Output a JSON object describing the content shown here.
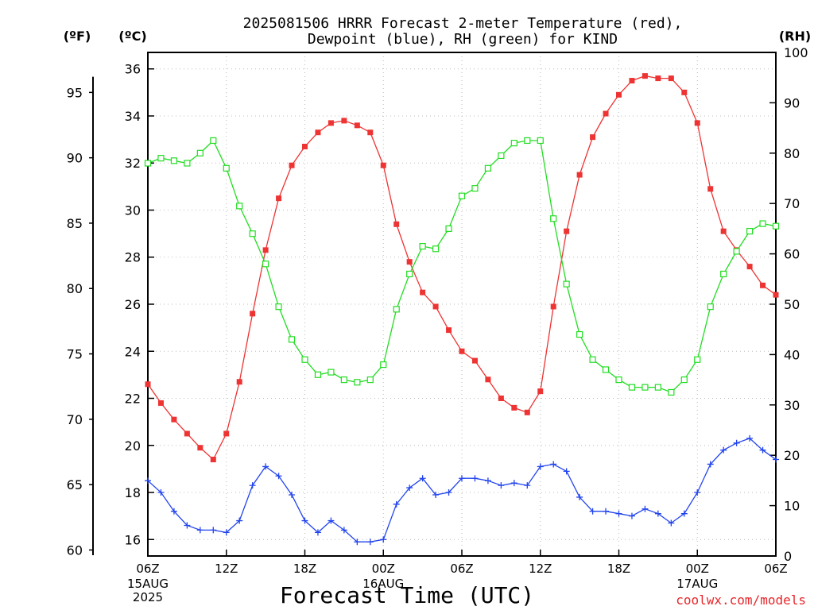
{
  "chart_data": {
    "type": "line",
    "title_line1": "2025081506 HRRR Forecast 2-meter Temperature (red),",
    "title_line2": "Dewpoint (blue), RH (green) for KIND",
    "unit_left_f": "(ºF)",
    "unit_left_c": "(ºC)",
    "unit_right": "(RH)",
    "xlabel": "Forecast Time (UTC)",
    "credit": "coolwx.com/models",
    "x_range_hours": [
      0,
      48
    ],
    "c_range": [
      15.3,
      36.7
    ],
    "rh_range": [
      0,
      100
    ],
    "f_ticks": [
      60,
      65,
      70,
      75,
      80,
      85,
      90,
      95
    ],
    "c_ticks": [
      16,
      18,
      20,
      22,
      24,
      26,
      28,
      30,
      32,
      34,
      36
    ],
    "rh_ticks": [
      0,
      10,
      20,
      30,
      40,
      50,
      60,
      70,
      80,
      90,
      100
    ],
    "x_ticks": [
      {
        "h": 0,
        "label": "06Z",
        "sub1": "15AUG",
        "sub2": "2025"
      },
      {
        "h": 6,
        "label": "12Z"
      },
      {
        "h": 12,
        "label": "18Z"
      },
      {
        "h": 18,
        "label": "00Z",
        "sub1": "16AUG"
      },
      {
        "h": 24,
        "label": "06Z"
      },
      {
        "h": 30,
        "label": "12Z"
      },
      {
        "h": 36,
        "label": "18Z"
      },
      {
        "h": 42,
        "label": "00Z",
        "sub1": "17AUG"
      },
      {
        "h": 48,
        "label": "06Z"
      }
    ],
    "grid": true,
    "series": [
      {
        "name": "Temperature",
        "unit": "°C",
        "color": "#ee3333",
        "marker": "filled-square",
        "values": [
          22.6,
          21.8,
          21.1,
          20.5,
          19.9,
          19.4,
          20.5,
          22.7,
          25.6,
          28.3,
          30.5,
          31.9,
          32.7,
          33.3,
          33.7,
          33.8,
          33.6,
          33.3,
          31.9,
          29.4,
          27.8,
          26.5,
          25.9,
          24.9,
          24.0,
          23.6,
          22.8,
          22.0,
          21.6,
          21.4,
          22.3,
          25.9,
          29.1,
          31.5,
          33.1,
          34.1,
          34.9,
          35.5,
          35.7,
          35.6,
          35.6,
          35.0,
          33.7,
          30.9,
          29.1,
          28.3,
          27.6,
          26.8,
          26.4
        ]
      },
      {
        "name": "Dewpoint",
        "unit": "°C",
        "color": "#2244ee",
        "marker": "plus",
        "values": [
          18.5,
          18.0,
          17.2,
          16.6,
          16.4,
          16.4,
          16.3,
          16.8,
          18.3,
          19.1,
          18.7,
          17.9,
          16.8,
          16.3,
          16.8,
          16.4,
          15.9,
          15.9,
          16.0,
          17.5,
          18.2,
          18.6,
          17.9,
          18.0,
          18.6,
          18.6,
          18.5,
          18.3,
          18.4,
          18.3,
          19.1,
          19.2,
          18.9,
          17.8,
          17.2,
          17.2,
          17.1,
          17.0,
          17.3,
          17.1,
          16.7,
          17.1,
          18.0,
          19.2,
          19.8,
          20.1,
          20.3,
          19.8,
          19.4
        ]
      },
      {
        "name": "RH",
        "unit": "%",
        "color": "#22dd22",
        "marker": "open-square",
        "values": [
          78,
          79,
          78.5,
          78,
          80,
          82.5,
          77,
          69.5,
          64,
          58,
          49.5,
          43,
          39,
          36,
          36.5,
          35,
          34.5,
          35,
          38,
          49,
          56,
          61.5,
          61,
          65,
          71.5,
          73,
          77,
          79.5,
          82,
          82.5,
          82.5,
          67,
          54,
          44,
          39,
          37,
          35,
          33.5,
          33.5,
          33.5,
          32.5,
          35,
          39,
          49.5,
          56,
          60.5,
          64.5,
          66,
          65.5
        ]
      }
    ]
  }
}
